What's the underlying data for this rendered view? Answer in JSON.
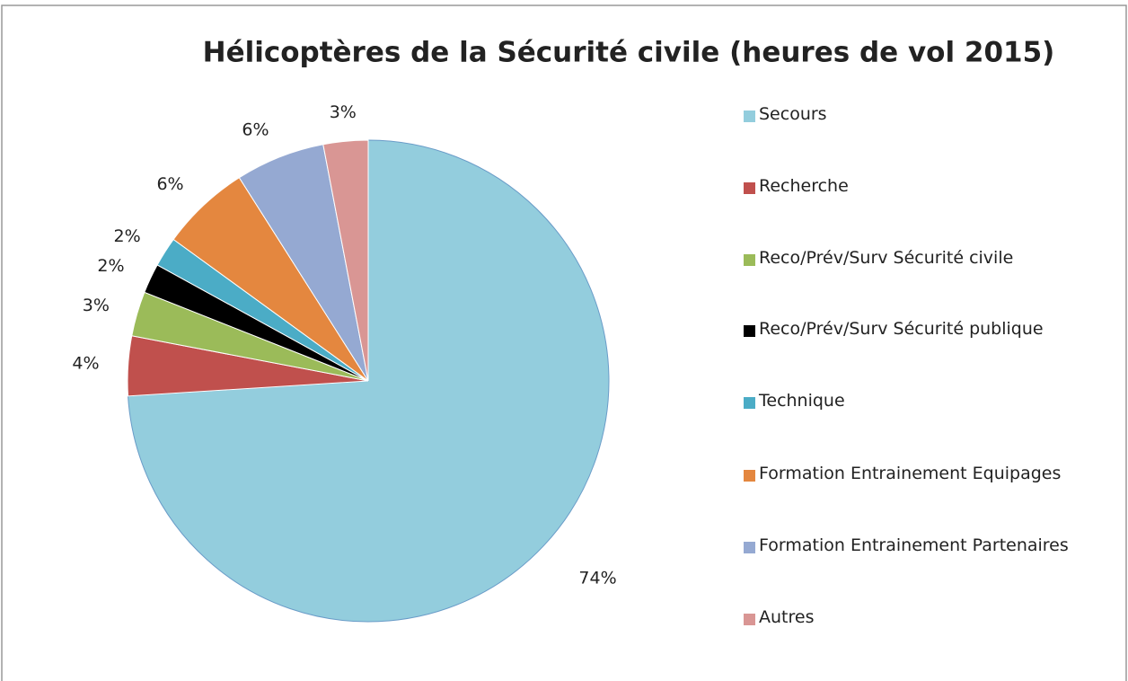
{
  "chart_data": {
    "type": "pie",
    "title": "Hélicoptères de la Sécurité civile (heures de vol 2015)",
    "categories": [
      "Secours",
      "Recherche",
      "Reco/Prév/Surv Sécurité civile",
      "Reco/Prév/Surv Sécurité publique",
      "Technique",
      "Formation Entrainement Equipages",
      "Formation  Entrainement Partenaires",
      "Autres"
    ],
    "values": [
      74,
      4,
      3,
      2,
      2,
      6,
      6,
      3
    ],
    "value_labels": [
      "74%",
      "4%",
      "3%",
      "2%",
      "2%",
      "6%",
      "6%",
      "3%"
    ],
    "colors": [
      "#93cddd",
      "#c0504d",
      "#9bbb59",
      "#000000",
      "#4bacc6",
      "#e4873f",
      "#95a9d2",
      "#d99694"
    ],
    "legend": "right"
  }
}
